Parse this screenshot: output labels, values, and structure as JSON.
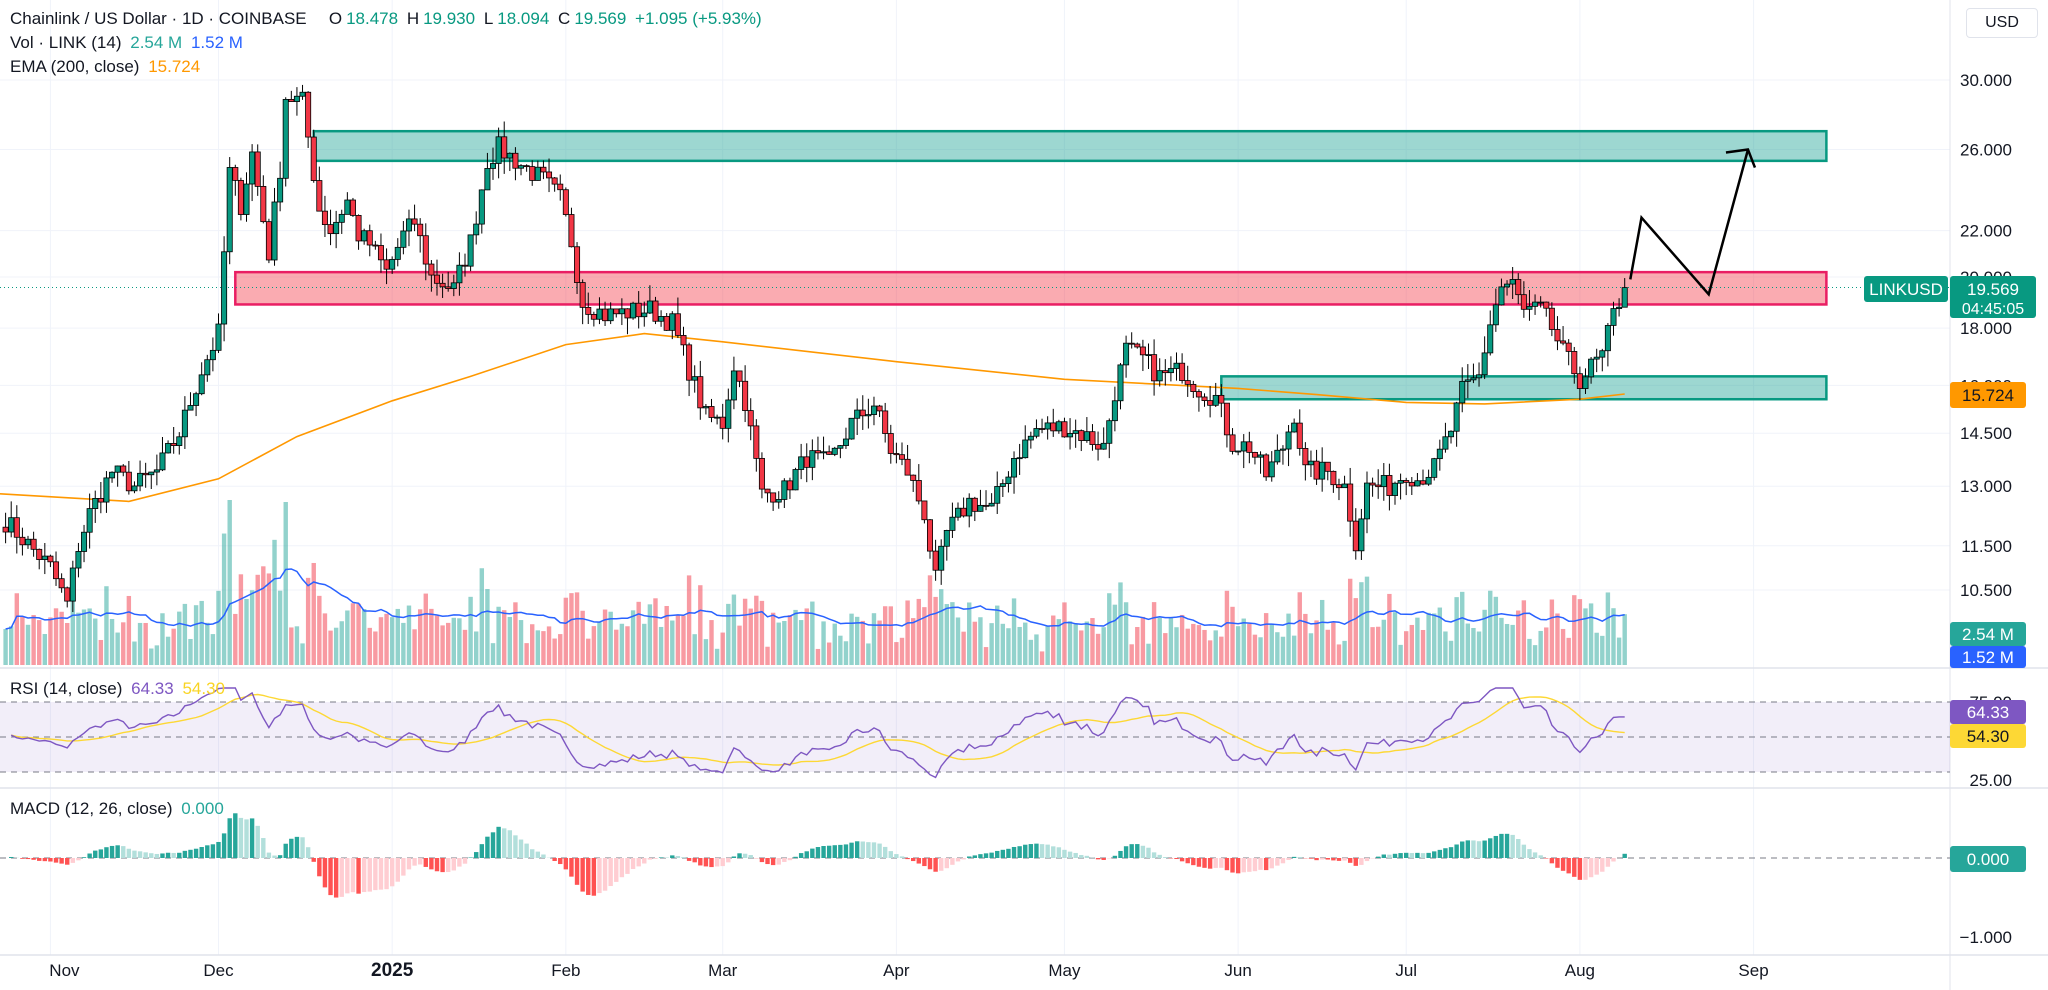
{
  "header": {
    "symbol": "Chainlink / US Dollar · 1D · COINBASE",
    "open_label": "O",
    "open": "18.478",
    "high_label": "H",
    "high": "19.930",
    "low_label": "L",
    "low": "18.094",
    "close_label": "C",
    "close": "19.569",
    "change": "+1.095 (+5.93%)",
    "vol_label": "Vol · LINK (14)",
    "vol_value": "2.54 M",
    "vol_ma_value": "1.52 M",
    "ema_label": "EMA (200, close)",
    "ema_value": "15.724",
    "currency": "USD"
  },
  "price_axis": {
    "ticks": [
      "30.000",
      "26.000",
      "22.000",
      "20.000",
      "18.000",
      "16.000",
      "14.500",
      "13.000",
      "11.500",
      "10.500"
    ]
  },
  "price_tags": {
    "symbol_tag": "LINKUSD",
    "last_price": "19.569",
    "countdown": "04:45:05",
    "ema": "15.724",
    "volume": "2.54 M",
    "volume_ma": "1.52 M"
  },
  "rsi": {
    "label": "RSI (14, close)",
    "value": "64.33",
    "ma_value": "54.30",
    "ticks": [
      "75.00",
      "25.00"
    ]
  },
  "macd": {
    "label": "MACD (12, 26, close)",
    "value": "0.000",
    "zero_tag": "0.000",
    "ticks": [
      "−1.000"
    ]
  },
  "time_axis": [
    "Nov",
    "Dec",
    "2025",
    "Feb",
    "Mar",
    "Apr",
    "May",
    "Jun",
    "Jul",
    "Aug",
    "Sep"
  ],
  "colors": {
    "up": "#089981",
    "down": "#f23645",
    "ema": "#ff9800",
    "vol_ma": "#2962ff",
    "rsi": "#7e57c2",
    "rsi_ma": "#fdd835",
    "supply_zone": "#26a69a",
    "resistance_zone": "#f23645"
  },
  "chart_data": [
    {
      "type": "candlestick",
      "title": "Chainlink / US Dollar · 1D · COINBASE",
      "y_scale": "log",
      "ylim": [
        9.8,
        31.5
      ],
      "x_range": [
        "2024-10-23",
        "2025-09-20"
      ],
      "price_series_approx": [
        [
          "2024-10-24",
          12.1
        ],
        [
          "2024-11-01",
          11.0
        ],
        [
          "2024-11-04",
          10.2
        ],
        [
          "2024-11-06",
          11.5
        ],
        [
          "2024-11-08",
          12.3
        ],
        [
          "2024-11-12",
          13.4
        ],
        [
          "2024-11-16",
          13.0
        ],
        [
          "2024-11-20",
          13.4
        ],
        [
          "2024-11-24",
          14.5
        ],
        [
          "2024-11-28",
          16.5
        ],
        [
          "2024-12-01",
          17.8
        ],
        [
          "2024-12-03",
          24.8
        ],
        [
          "2024-12-05",
          23.2
        ],
        [
          "2024-12-07",
          25.8
        ],
        [
          "2024-12-10",
          21.0
        ],
        [
          "2024-12-12",
          25.0
        ],
        [
          "2024-12-13",
          29.0
        ],
        [
          "2024-12-16",
          28.7
        ],
        [
          "2024-12-19",
          23.0
        ],
        [
          "2024-12-21",
          22.0
        ],
        [
          "2024-12-24",
          23.4
        ],
        [
          "2024-12-26",
          21.8
        ],
        [
          "2024-12-28",
          21.4
        ],
        [
          "2024-12-31",
          20.2
        ],
        [
          "2025-01-03",
          21.8
        ],
        [
          "2025-01-05",
          22.4
        ],
        [
          "2025-01-08",
          20.0
        ],
        [
          "2025-01-12",
          19.5
        ],
        [
          "2025-01-15",
          21.5
        ],
        [
          "2025-01-18",
          25.4
        ],
        [
          "2025-01-20",
          26.1
        ],
        [
          "2025-01-24",
          25.2
        ],
        [
          "2025-01-28",
          24.4
        ],
        [
          "2025-01-31",
          23.5
        ],
        [
          "2025-02-02",
          21.5
        ],
        [
          "2025-02-04",
          19.0
        ],
        [
          "2025-02-08",
          18.5
        ],
        [
          "2025-02-12",
          18.6
        ],
        [
          "2025-02-16",
          18.7
        ],
        [
          "2025-02-20",
          18.2
        ],
        [
          "2025-02-24",
          16.0
        ],
        [
          "2025-02-26",
          15.0
        ],
        [
          "2025-03-01",
          14.8
        ],
        [
          "2025-03-03",
          16.7
        ],
        [
          "2025-03-05",
          15.5
        ],
        [
          "2025-03-08",
          12.8
        ],
        [
          "2025-03-12",
          12.9
        ],
        [
          "2025-03-16",
          13.8
        ],
        [
          "2025-03-20",
          13.6
        ],
        [
          "2025-03-24",
          14.8
        ],
        [
          "2025-03-28",
          15.4
        ],
        [
          "2025-03-31",
          14.0
        ],
        [
          "2025-04-03",
          13.4
        ],
        [
          "2025-04-06",
          12.3
        ],
        [
          "2025-04-08",
          10.7
        ],
        [
          "2025-04-10",
          11.8
        ],
        [
          "2025-04-14",
          12.6
        ],
        [
          "2025-04-18",
          12.4
        ],
        [
          "2025-04-22",
          13.8
        ],
        [
          "2025-04-26",
          14.6
        ],
        [
          "2025-05-01",
          14.7
        ],
        [
          "2025-05-05",
          14.4
        ],
        [
          "2025-05-08",
          14.1
        ],
        [
          "2025-05-10",
          15.8
        ],
        [
          "2025-05-12",
          17.2
        ],
        [
          "2025-05-15",
          16.9
        ],
        [
          "2025-05-18",
          16.3
        ],
        [
          "2025-05-22",
          16.5
        ],
        [
          "2025-05-25",
          15.9
        ],
        [
          "2025-05-28",
          15.6
        ],
        [
          "2025-05-31",
          14.2
        ],
        [
          "2025-06-03",
          14.1
        ],
        [
          "2025-06-06",
          13.3
        ],
        [
          "2025-06-09",
          14.1
        ],
        [
          "2025-06-11",
          15.1
        ],
        [
          "2025-06-13",
          13.4
        ],
        [
          "2025-06-17",
          13.4
        ],
        [
          "2025-06-20",
          13.0
        ],
        [
          "2025-06-22",
          11.6
        ],
        [
          "2025-06-24",
          13.0
        ],
        [
          "2025-06-28",
          13.0
        ],
        [
          "2025-07-01",
          13.4
        ],
        [
          "2025-07-03",
          13.2
        ],
        [
          "2025-07-06",
          13.5
        ],
        [
          "2025-07-09",
          14.6
        ],
        [
          "2025-07-11",
          15.8
        ],
        [
          "2025-07-14",
          16.3
        ],
        [
          "2025-07-16",
          18.2
        ],
        [
          "2025-07-18",
          19.6
        ],
        [
          "2025-07-20",
          19.7
        ],
        [
          "2025-07-22",
          18.6
        ],
        [
          "2025-07-25",
          18.7
        ],
        [
          "2025-07-27",
          18.0
        ],
        [
          "2025-07-29",
          17.1
        ],
        [
          "2025-08-01",
          16.2
        ],
        [
          "2025-08-03",
          16.6
        ],
        [
          "2025-08-05",
          17.0
        ],
        [
          "2025-08-07",
          18.5
        ],
        [
          "2025-08-09",
          19.6
        ]
      ],
      "ema_200_approx": [
        [
          "2024-10-23",
          12.8
        ],
        [
          "2024-11-15",
          12.6
        ],
        [
          "2024-12-01",
          13.2
        ],
        [
          "2024-12-15",
          14.4
        ],
        [
          "2025-01-01",
          15.5
        ],
        [
          "2025-01-15",
          16.3
        ],
        [
          "2025-02-01",
          17.4
        ],
        [
          "2025-02-15",
          17.8
        ],
        [
          "2025-03-01",
          17.5
        ],
        [
          "2025-04-01",
          16.8
        ],
        [
          "2025-05-01",
          16.2
        ],
        [
          "2025-06-01",
          15.9
        ],
        [
          "2025-06-15",
          15.7
        ],
        [
          "2025-07-01",
          15.45
        ],
        [
          "2025-07-15",
          15.4
        ],
        [
          "2025-08-01",
          15.55
        ],
        [
          "2025-08-09",
          15.72
        ]
      ],
      "zones": [
        {
          "kind": "supply",
          "from": "2024-12-18",
          "to": "2025-09-14",
          "low": 25.4,
          "high": 27.0
        },
        {
          "kind": "resistance",
          "from": "2024-12-04",
          "to": "2025-09-14",
          "low": 18.9,
          "high": 20.2
        },
        {
          "kind": "support",
          "from": "2025-05-29",
          "to": "2025-09-14",
          "low": 15.55,
          "high": 16.3
        }
      ],
      "projection": [
        [
          "2025-08-10",
          19.9
        ],
        [
          "2025-08-12",
          22.6
        ],
        [
          "2025-08-24",
          19.3
        ],
        [
          "2025-08-31",
          26.0
        ]
      ]
    },
    {
      "type": "bar",
      "title": "Vol · LINK (14)",
      "last_volume_millions": 2.54,
      "volume_ma_millions": 1.52
    },
    {
      "type": "line",
      "title": "RSI (14, close)",
      "ylim": [
        25,
        75
      ],
      "last": 64.33,
      "ma_last": 54.3
    },
    {
      "type": "bar",
      "title": "MACD (12, 26, close)",
      "histogram_last": 0.0
    }
  ]
}
